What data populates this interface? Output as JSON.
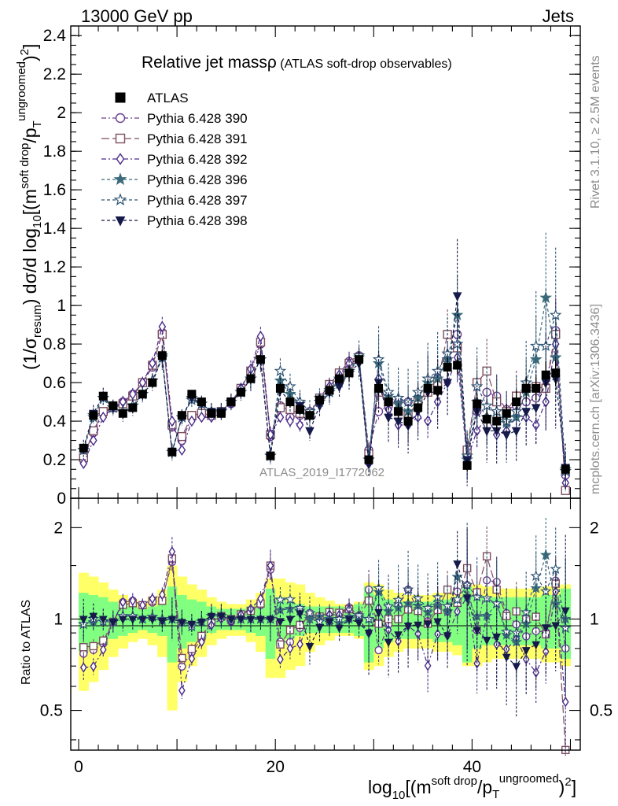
{
  "header": {
    "energy_label": "13000 GeV pp",
    "process_label": "Jets"
  },
  "side_labels": {
    "rivet": "Rivet 3.1.10, ≥ 2.5M events",
    "mcplots": "mcplots.cern.ch [arXiv:1306.3436]"
  },
  "watermark": "ATLAS_2019_I1772062",
  "colors": {
    "data": "#000000",
    "band_stat": "#80ff80",
    "band_total": "#ffff66",
    "series": [
      "#6a3d8f",
      "#7d4e5e",
      "#4a2a8a",
      "#3b6b7a",
      "#2f5575",
      "#151a4a"
    ]
  },
  "chart_data": [
    {
      "panel": "main",
      "type": "scatter",
      "title_main": "Relative jet massρ",
      "title_sub": " (ATLAS soft-drop observables)",
      "ylabel": "(1/σresum) dσ/d log10[(msoft drop/pTungroomed)2]",
      "ylim": [
        0,
        2.45
      ],
      "yticks": [
        0,
        0.2,
        0.4,
        0.6,
        0.8,
        1,
        1.2,
        1.4,
        1.6,
        1.8,
        2,
        2.2,
        2.4
      ],
      "ytick_labels": [
        "0",
        "0.2",
        "0.4",
        "0.6",
        "0.8",
        "1",
        "1.2",
        "1.4",
        "1.6",
        "1.8",
        "2",
        "2.2",
        "2.4"
      ],
      "x": [
        0.5,
        1.5,
        2.5,
        3.5,
        4.5,
        5.5,
        6.5,
        7.5,
        8.5,
        9.5,
        10.5,
        11.5,
        12.5,
        13.5,
        14.5,
        15.5,
        16.5,
        17.5,
        18.5,
        19.5,
        20.5,
        21.5,
        22.5,
        23.5,
        24.5,
        25.5,
        26.5,
        27.5,
        28.5,
        29.5,
        30.5,
        31.5,
        32.5,
        33.5,
        34.5,
        35.5,
        36.5,
        37.5,
        38.5,
        39.5,
        40.5,
        41.5,
        42.5,
        43.5,
        44.5,
        45.5,
        46.5,
        47.5,
        48.5,
        49.5
      ],
      "data": {
        "name": "ATLAS",
        "values": [
          0.26,
          0.43,
          0.53,
          0.48,
          0.44,
          0.47,
          0.54,
          0.6,
          0.74,
          0.24,
          0.43,
          0.54,
          0.5,
          0.44,
          0.44,
          0.5,
          0.55,
          0.62,
          0.72,
          0.22,
          0.57,
          0.5,
          0.46,
          0.43,
          0.51,
          0.56,
          0.62,
          0.65,
          0.72,
          0.2,
          0.57,
          0.5,
          0.45,
          0.4,
          0.47,
          0.57,
          0.56,
          0.68,
          0.69,
          0.17,
          0.49,
          0.41,
          0.4,
          0.44,
          0.5,
          0.57,
          0.57,
          0.64,
          0.65,
          0.15
        ],
        "errors": [
          0.02,
          0.02,
          0.02,
          0.02,
          0.02,
          0.02,
          0.02,
          0.02,
          0.03,
          0.02,
          0.02,
          0.02,
          0.02,
          0.02,
          0.02,
          0.02,
          0.02,
          0.03,
          0.03,
          0.02,
          0.03,
          0.03,
          0.03,
          0.03,
          0.03,
          0.03,
          0.03,
          0.04,
          0.04,
          0.02,
          0.04,
          0.04,
          0.04,
          0.04,
          0.04,
          0.05,
          0.05,
          0.05,
          0.05,
          0.03,
          0.05,
          0.05,
          0.05,
          0.05,
          0.06,
          0.06,
          0.06,
          0.07,
          0.07,
          0.03
        ]
      },
      "series": [
        {
          "name": "Pythia 6.428 390",
          "marker": "circle-open",
          "dash": "6,3,2,3",
          "values": [
            0.2,
            0.34,
            0.44,
            0.47,
            0.5,
            0.54,
            0.6,
            0.68,
            0.86,
            0.37,
            0.3,
            0.42,
            0.43,
            0.43,
            0.45,
            0.49,
            0.57,
            0.66,
            0.8,
            0.32,
            0.48,
            0.42,
            0.43,
            0.45,
            0.52,
            0.59,
            0.65,
            0.71,
            0.74,
            0.25,
            0.45,
            0.48,
            0.5,
            0.5,
            0.5,
            0.56,
            0.62,
            0.72,
            0.85,
            0.22,
            0.45,
            0.55,
            0.53,
            0.46,
            0.48,
            0.5,
            0.52,
            0.58,
            0.87,
            0.12
          ]
        },
        {
          "name": "Pythia 6.428 391",
          "marker": "square-open",
          "dash": "10,4",
          "values": [
            0.21,
            0.35,
            0.45,
            0.47,
            0.49,
            0.53,
            0.6,
            0.69,
            0.85,
            0.38,
            0.32,
            0.43,
            0.44,
            0.43,
            0.45,
            0.5,
            0.57,
            0.66,
            0.81,
            0.33,
            0.47,
            0.46,
            0.44,
            0.44,
            0.52,
            0.59,
            0.65,
            0.7,
            0.73,
            0.23,
            0.55,
            0.5,
            0.45,
            0.43,
            0.5,
            0.55,
            0.6,
            0.85,
            0.78,
            0.25,
            0.6,
            0.66,
            0.5,
            0.45,
            0.53,
            0.57,
            0.58,
            0.57,
            0.85,
            0.04
          ]
        },
        {
          "name": "Pythia 6.428 392",
          "marker": "diamond-open",
          "dash": "6,3,2,3",
          "values": [
            0.18,
            0.3,
            0.42,
            0.47,
            0.5,
            0.54,
            0.6,
            0.7,
            0.89,
            0.4,
            0.25,
            0.4,
            0.42,
            0.42,
            0.44,
            0.49,
            0.57,
            0.67,
            0.84,
            0.33,
            0.42,
            0.4,
            0.38,
            0.43,
            0.5,
            0.58,
            0.64,
            0.7,
            0.72,
            0.18,
            0.62,
            0.46,
            0.38,
            0.38,
            0.42,
            0.4,
            0.5,
            0.6,
            0.73,
            0.2,
            0.35,
            0.42,
            0.33,
            0.35,
            0.43,
            0.42,
            0.38,
            0.5,
            0.8,
            0.08
          ]
        },
        {
          "name": "Pythia 6.428 396",
          "marker": "star-filled",
          "dash": "4,3",
          "values": [
            0.25,
            0.42,
            0.52,
            0.47,
            0.45,
            0.48,
            0.54,
            0.61,
            0.74,
            0.24,
            0.42,
            0.52,
            0.49,
            0.45,
            0.45,
            0.5,
            0.55,
            0.62,
            0.72,
            0.22,
            0.61,
            0.54,
            0.49,
            0.43,
            0.52,
            0.56,
            0.6,
            0.65,
            0.73,
            0.2,
            0.7,
            0.53,
            0.49,
            0.45,
            0.52,
            0.6,
            0.62,
            0.72,
            0.95,
            0.2,
            0.5,
            0.42,
            0.45,
            0.39,
            0.42,
            0.55,
            0.72,
            1.04,
            0.73,
            0.15
          ]
        },
        {
          "name": "Pythia 6.428 397",
          "marker": "star-open",
          "dash": "4,3",
          "values": [
            0.25,
            0.43,
            0.52,
            0.47,
            0.45,
            0.48,
            0.54,
            0.61,
            0.73,
            0.24,
            0.42,
            0.51,
            0.49,
            0.45,
            0.45,
            0.5,
            0.55,
            0.62,
            0.72,
            0.22,
            0.66,
            0.58,
            0.5,
            0.45,
            0.5,
            0.55,
            0.62,
            0.66,
            0.74,
            0.2,
            0.72,
            0.55,
            0.52,
            0.5,
            0.55,
            0.62,
            0.66,
            0.75,
            0.8,
            0.22,
            0.58,
            0.48,
            0.45,
            0.4,
            0.45,
            0.6,
            0.79,
            0.79,
            0.95,
            0.14
          ]
        },
        {
          "name": "Pythia 6.428 398",
          "marker": "triangle-down-filled",
          "dash": "4,3",
          "values": [
            0.26,
            0.44,
            0.53,
            0.47,
            0.44,
            0.47,
            0.54,
            0.6,
            0.73,
            0.24,
            0.42,
            0.52,
            0.49,
            0.45,
            0.45,
            0.5,
            0.55,
            0.62,
            0.72,
            0.22,
            0.56,
            0.5,
            0.48,
            0.35,
            0.48,
            0.55,
            0.58,
            0.65,
            0.7,
            0.18,
            0.6,
            0.42,
            0.4,
            0.38,
            0.45,
            0.55,
            0.55,
            0.6,
            1.05,
            0.2,
            0.45,
            0.35,
            0.35,
            0.33,
            0.35,
            0.45,
            0.47,
            0.6,
            0.62,
            0.16
          ]
        }
      ]
    },
    {
      "panel": "ratio",
      "type": "scatter",
      "ylabel": "Ratio to ATLAS",
      "xlabel": "log10[(msoft drop/pTungroomed)2]",
      "xlim": [
        -0.8,
        51.0
      ],
      "ylim": [
        0.37,
        2.5
      ],
      "log_y": true,
      "xticks": [
        0,
        20,
        40
      ],
      "xtick_labels": [
        "0",
        "20",
        "40"
      ],
      "yticks": [
        0.5,
        1,
        2
      ],
      "ytick_labels": [
        "0.5",
        "1",
        "2"
      ],
      "band_stat_halfwidth": [
        0.22,
        0.2,
        0.18,
        0.14,
        0.12,
        0.1,
        0.08,
        0.1,
        0.12,
        0.28,
        0.2,
        0.16,
        0.14,
        0.1,
        0.08,
        0.08,
        0.08,
        0.1,
        0.12,
        0.26,
        0.18,
        0.14,
        0.12,
        0.1,
        0.1,
        0.1,
        0.1,
        0.1,
        0.12,
        0.28,
        0.2,
        0.16,
        0.14,
        0.14,
        0.14,
        0.14,
        0.16,
        0.16,
        0.18,
        0.28,
        0.2,
        0.18,
        0.18,
        0.18,
        0.18,
        0.18,
        0.18,
        0.2,
        0.2,
        0.26
      ],
      "band_total_halfwidth": [
        0.42,
        0.38,
        0.32,
        0.25,
        0.2,
        0.16,
        0.14,
        0.18,
        0.25,
        0.5,
        0.38,
        0.3,
        0.25,
        0.18,
        0.14,
        0.12,
        0.12,
        0.16,
        0.22,
        0.36,
        0.36,
        0.32,
        0.3,
        0.22,
        0.18,
        0.15,
        0.12,
        0.12,
        0.14,
        0.32,
        0.3,
        0.25,
        0.22,
        0.2,
        0.2,
        0.2,
        0.22,
        0.22,
        0.24,
        0.3,
        0.3,
        0.28,
        0.26,
        0.26,
        0.26,
        0.26,
        0.26,
        0.28,
        0.28,
        0.3
      ]
    }
  ]
}
